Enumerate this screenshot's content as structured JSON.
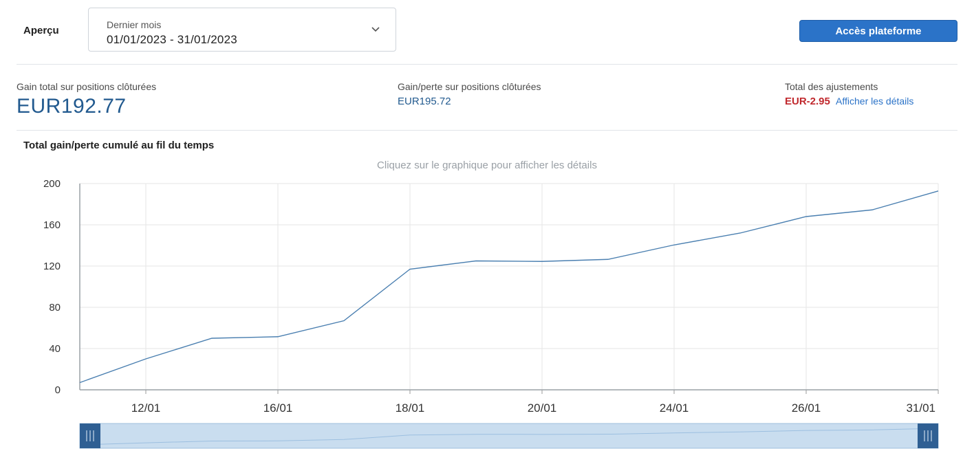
{
  "header": {
    "overview_label": "Aperçu",
    "period": {
      "caption": "Dernier mois",
      "value": "01/01/2023 - 31/01/2023"
    },
    "platform_button": "Accès plateforme"
  },
  "kpis": {
    "total_gain": {
      "label": "Gain total sur positions clôturées",
      "value": "EUR192.77"
    },
    "gain_loss": {
      "label": "Gain/perte sur positions clôturées",
      "value": "EUR195.72"
    },
    "adjustments": {
      "label": "Total des ajustements",
      "value": "EUR-2.95",
      "link": "Afficher les détails"
    }
  },
  "colors": {
    "accent": "#2b73c8",
    "kpi_value": "#225a8f",
    "negative": "#c0282d",
    "line": "#4a7fb0"
  },
  "chart_data": {
    "type": "line",
    "title": "Total gain/perte cumulé au fil du temps",
    "subtitle": "Cliquez sur le graphique pour afficher les détails",
    "x_labels": [
      "12/01",
      "16/01",
      "18/01",
      "20/01",
      "24/01",
      "26/01",
      "31/01"
    ],
    "y_ticks": [
      0,
      40,
      80,
      120,
      160,
      200
    ],
    "ylim": [
      0,
      200
    ],
    "grid": true,
    "legend": "none",
    "series": [
      {
        "values": [
          7,
          30,
          50,
          51.5,
          67,
          117,
          125,
          124.5,
          126.5,
          140.5,
          152,
          168,
          174.5,
          192.77
        ]
      }
    ],
    "navigator": true
  }
}
